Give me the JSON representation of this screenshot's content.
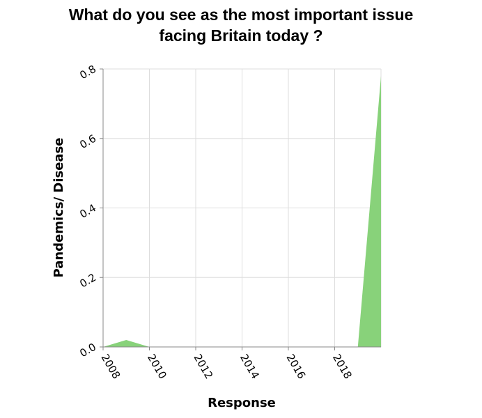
{
  "chart_data": {
    "type": "area",
    "title_lines": [
      "What do you see as the most important issue",
      "facing Britain today ?"
    ],
    "xlabel": "Response",
    "ylabel": "Pandemics/ Disease",
    "xlim": [
      2008,
      2020
    ],
    "ylim": [
      0,
      0.8
    ],
    "x_ticks": [
      2008,
      2010,
      2012,
      2014,
      2016,
      2018
    ],
    "x_tick_labels": [
      "2008",
      "2010",
      "2012",
      "2014",
      "2016",
      "2018"
    ],
    "y_ticks": [
      0,
      0.2,
      0.4,
      0.6,
      0.8
    ],
    "y_tick_labels": [
      "0.0",
      "0.2",
      "0.4",
      "0.6",
      "0.8"
    ],
    "grid": true,
    "legend": "none",
    "series": [
      {
        "color": "#88d27a",
        "points": [
          {
            "x": 2008,
            "y": 0
          },
          {
            "x": 2009,
            "y": 0.02
          },
          {
            "x": 2010,
            "y": 0
          },
          {
            "x": 2019,
            "y": 0
          },
          {
            "x": 2020,
            "y": 0.78
          }
        ]
      }
    ]
  }
}
